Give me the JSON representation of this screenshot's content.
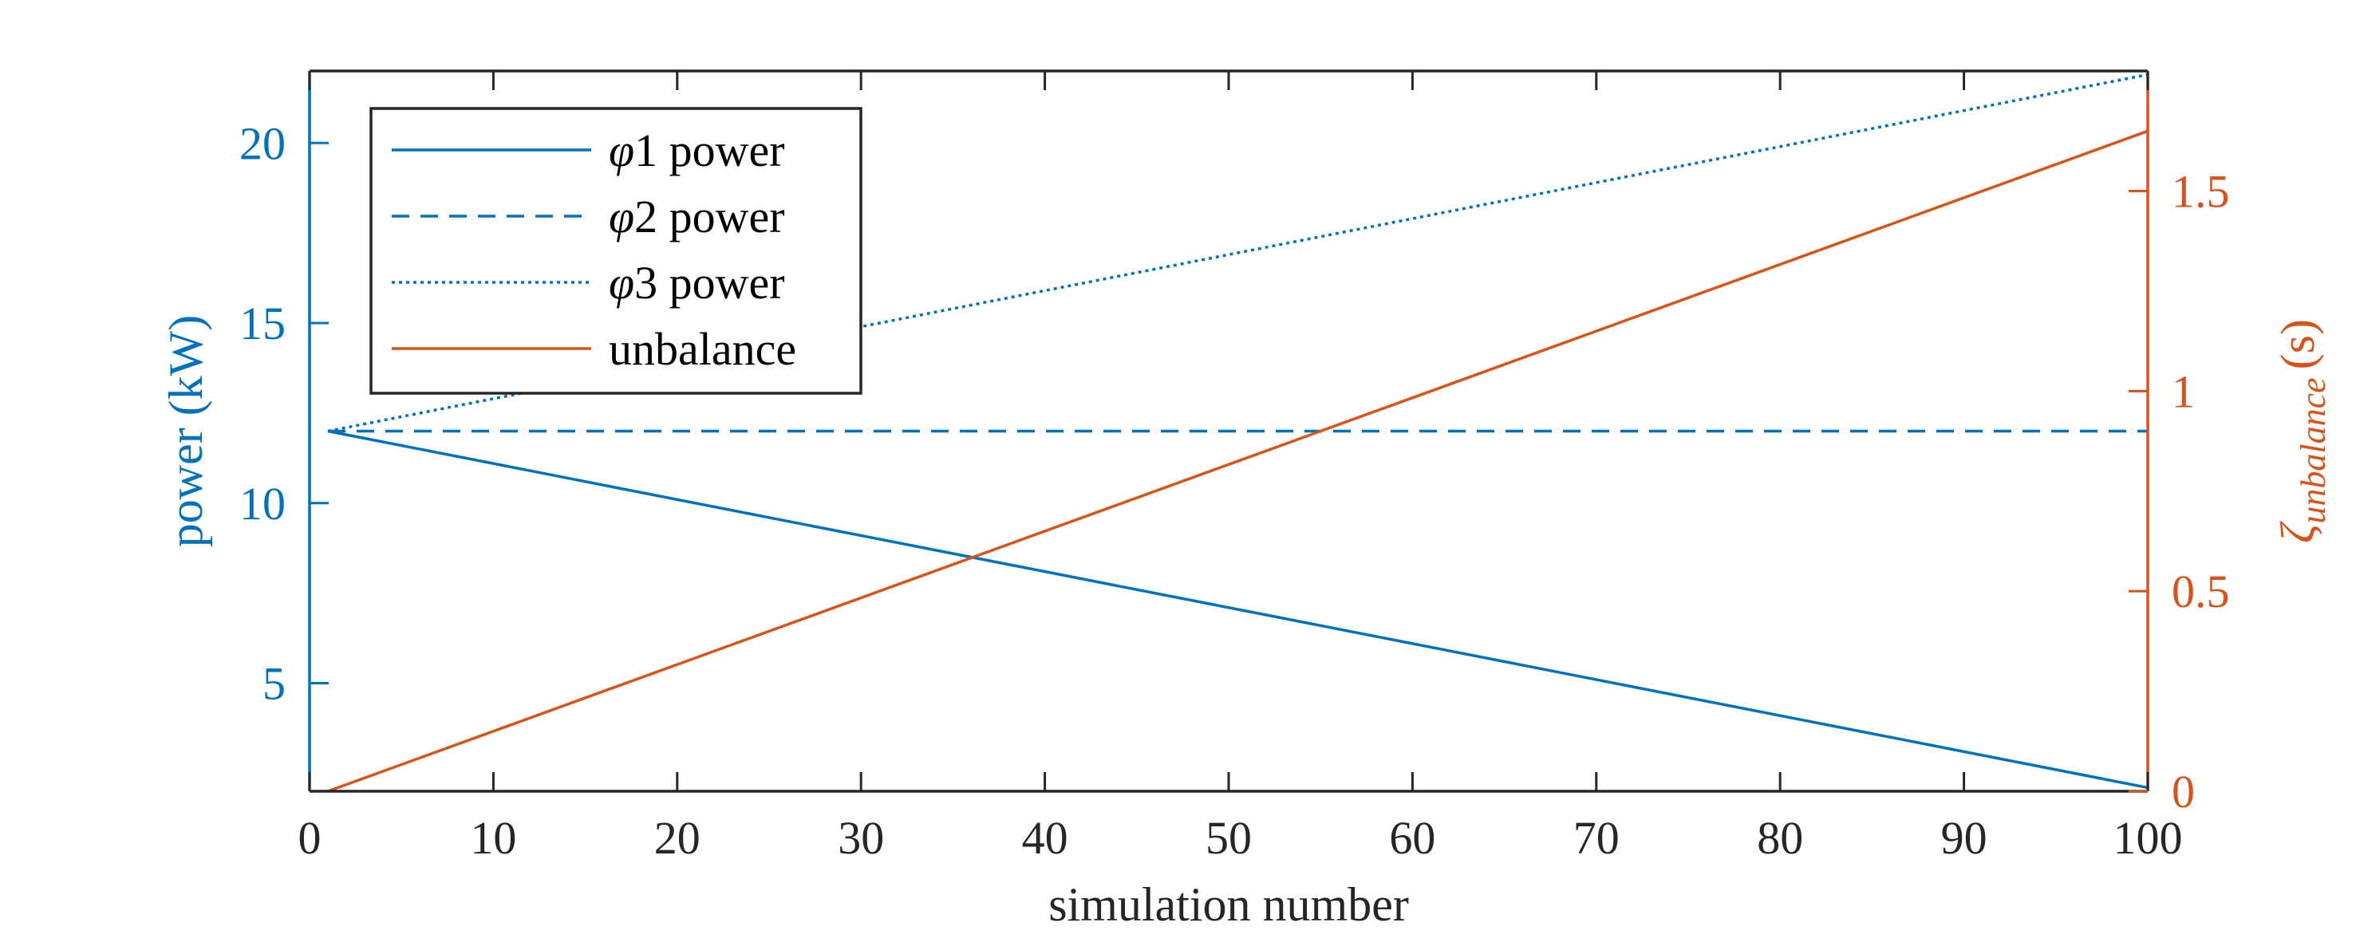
{
  "chart_data": {
    "type": "line",
    "xlabel": "simulation number",
    "ylabel_left": "power (kW)",
    "ylabel_right": {
      "symbol": "ζ",
      "subscript": "unbalance",
      "suffix": "(s)"
    },
    "xlim": [
      0,
      100
    ],
    "ylim_left": [
      2,
      22
    ],
    "ylim_right": [
      0,
      1.8
    ],
    "x_ticks": [
      0,
      10,
      20,
      30,
      40,
      50,
      60,
      70,
      80,
      90,
      100
    ],
    "x_tick_labels": [
      "0",
      "10",
      "20",
      "30",
      "40",
      "50",
      "60",
      "70",
      "80",
      "90",
      "100"
    ],
    "y_left_ticks": [
      5,
      10,
      15,
      20
    ],
    "y_left_tick_labels": [
      "5",
      "10",
      "15",
      "20"
    ],
    "y_right_ticks": [
      0,
      0.5,
      1,
      1.5
    ],
    "y_right_tick_labels": [
      "0",
      "0.5",
      "1",
      "1.5"
    ],
    "grid": false,
    "legend_position": "top-left",
    "series": [
      {
        "name": "φ1 power",
        "legend_symbol": "φ",
        "legend_rest": "1 power",
        "axis": "left",
        "style": "solid",
        "color": "#0072BD",
        "x": [
          1,
          100
        ],
        "y": [
          12,
          2.1
        ]
      },
      {
        "name": "φ2 power",
        "legend_symbol": "φ",
        "legend_rest": "2 power",
        "axis": "left",
        "style": "dashed",
        "color": "#0072BD",
        "x": [
          1,
          100
        ],
        "y": [
          12,
          12
        ]
      },
      {
        "name": "φ3 power",
        "legend_symbol": "φ",
        "legend_rest": "3 power",
        "axis": "left",
        "style": "dotted",
        "color": "#0072BD",
        "x": [
          1,
          100
        ],
        "y": [
          12,
          21.9
        ]
      },
      {
        "name": "unbalance",
        "legend_symbol": "",
        "legend_rest": "unbalance",
        "axis": "right",
        "style": "solid",
        "color": "#D95319",
        "x": [
          1,
          100
        ],
        "y": [
          0,
          1.65
        ]
      }
    ],
    "colors": {
      "left_axis": "#0072BD",
      "right_axis": "#D95319",
      "frame": "#262626"
    }
  }
}
